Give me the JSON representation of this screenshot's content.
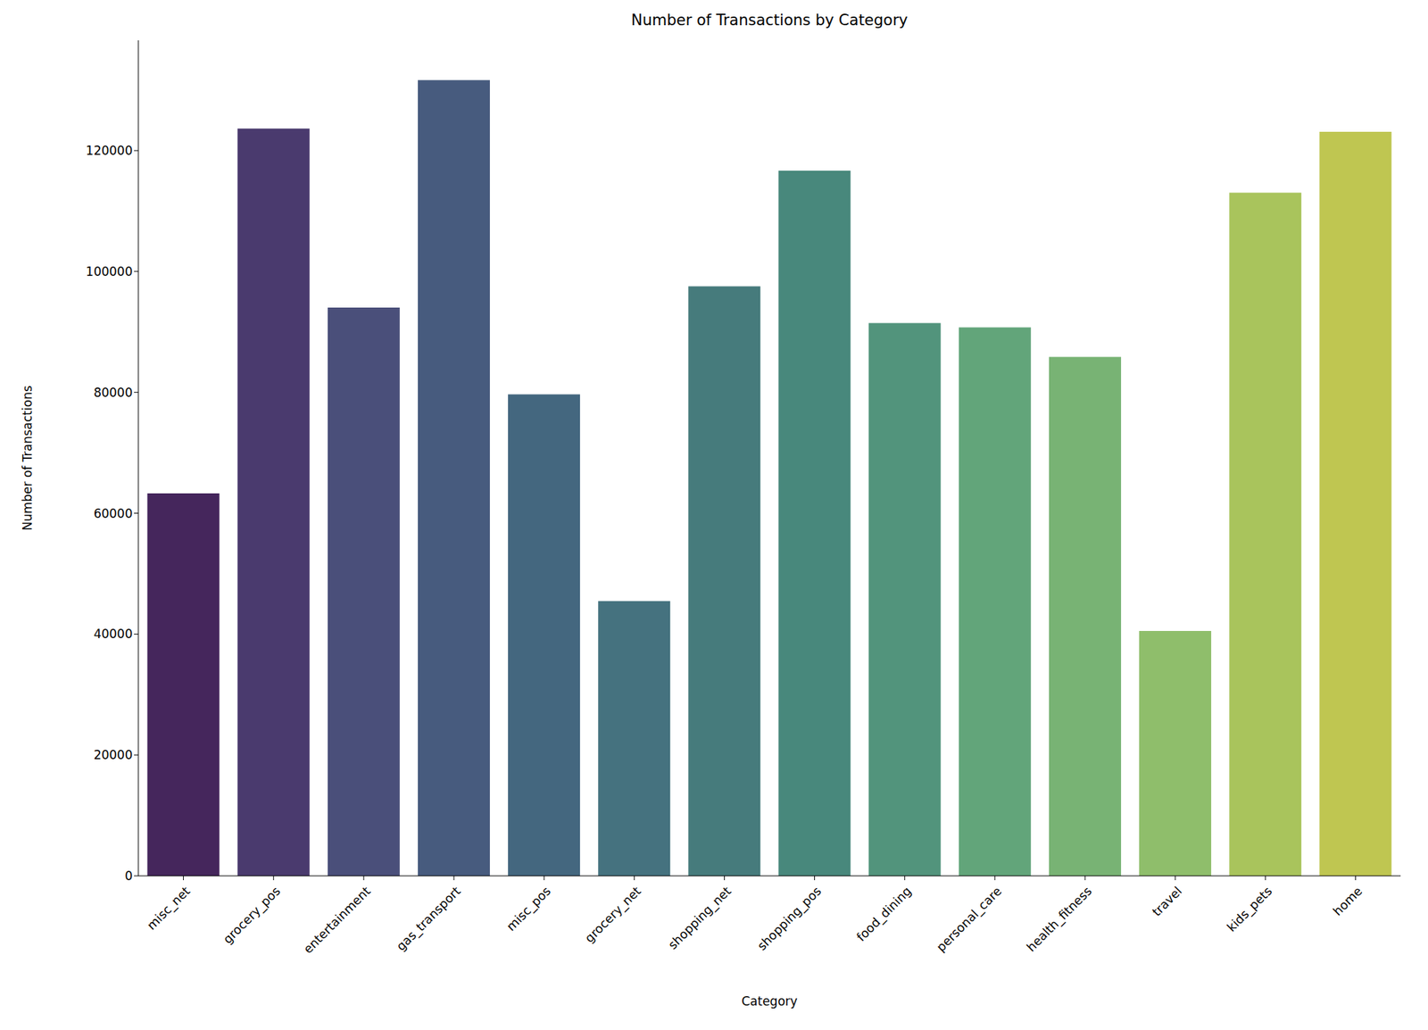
{
  "chart_data": {
    "type": "bar",
    "title": "Number of Transactions by Category",
    "x_label": "Category",
    "y_label": "Number of Transactions",
    "categories": [
      "misc_net",
      "grocery_pos",
      "entertainment",
      "gas_transport",
      "misc_pos",
      "grocery_net",
      "shopping_net",
      "shopping_pos",
      "food_dining",
      "personal_care",
      "health_fitness",
      "travel",
      "kids_pets",
      "home"
    ],
    "values": [
      63287,
      123638,
      94014,
      131659,
      79655,
      45452,
      97543,
      116672,
      91461,
      90758,
      85879,
      40507,
      113035,
      123115
    ],
    "colors": [
      "#45265c",
      "#4a3a6e",
      "#4a4f7a",
      "#475b7e",
      "#44677f",
      "#45727f",
      "#467b7c",
      "#48887c",
      "#52947c",
      "#62a57a",
      "#78b374",
      "#8fbe6b",
      "#a9c45c",
      "#bfc651"
    ],
    "ylim": [
      0,
      138242
    ],
    "yticks": [
      0,
      20000,
      40000,
      60000,
      80000,
      100000,
      120000
    ],
    "grid": false
  }
}
